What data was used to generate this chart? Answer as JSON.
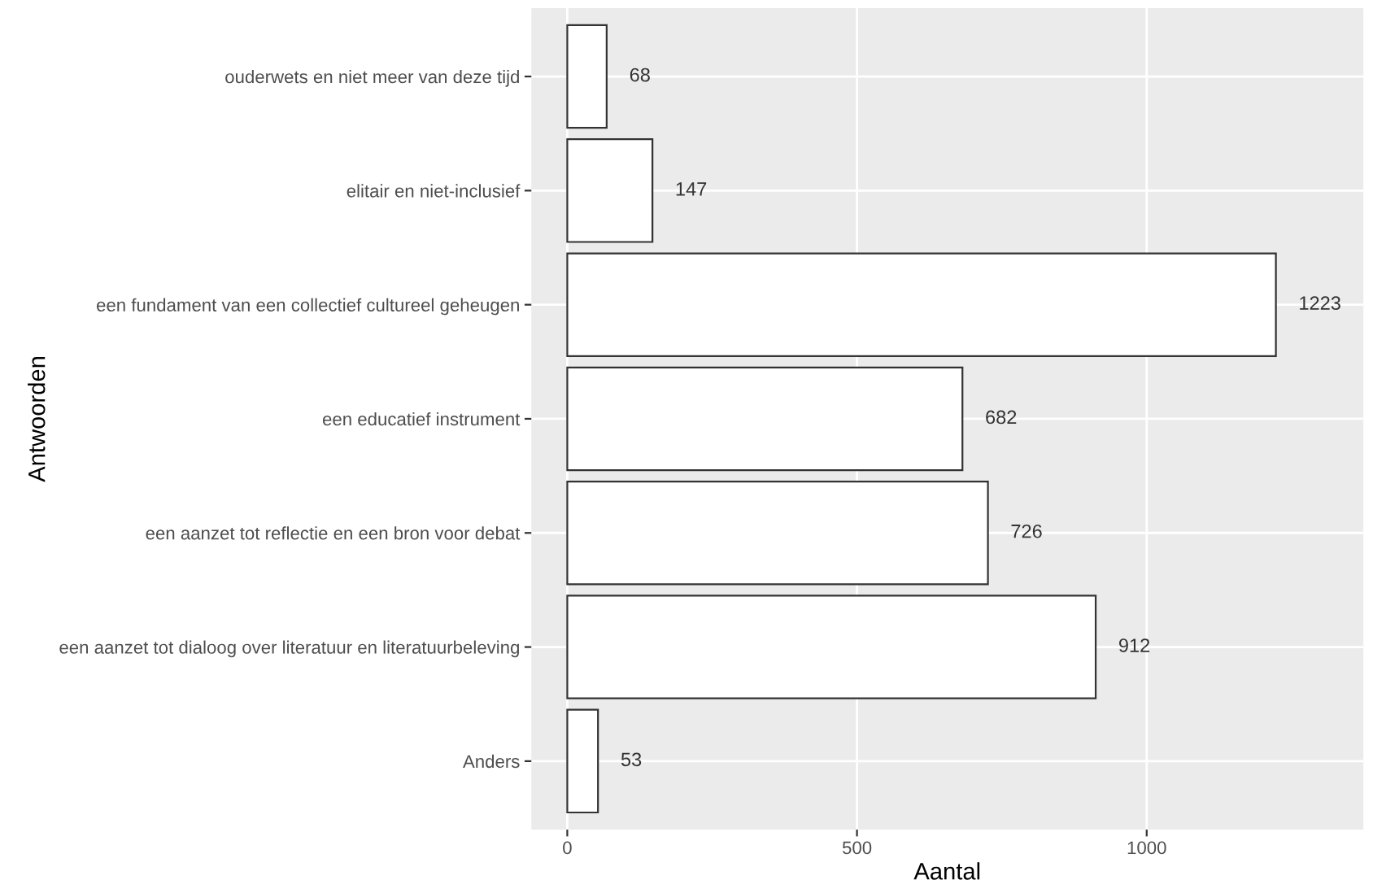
{
  "chart_data": {
    "type": "bar",
    "orientation": "horizontal",
    "xlabel": "Aantal",
    "ylabel": "Antwoorden",
    "categories": [
      "ouderwets en niet meer van deze tijd",
      "elitair en niet-inclusief",
      "een fundament van een collectief cultureel geheugen",
      "een educatief instrument",
      "een aanzet tot reflectie en een bron voor debat",
      "een aanzet tot dialoog over literatuur en literatuurbeleving",
      "Anders"
    ],
    "values": [
      68,
      147,
      1223,
      682,
      726,
      912,
      53
    ],
    "color": "#ffffff",
    "xlim": [
      -62,
      1374
    ],
    "xticks": [
      0,
      500,
      1000
    ],
    "grid": true,
    "data_labels": true
  }
}
